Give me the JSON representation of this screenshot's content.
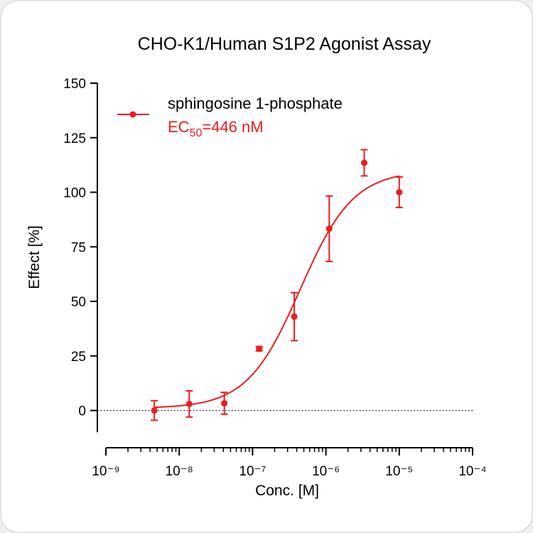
{
  "chart_data": {
    "type": "dose-response",
    "title": "CHO-K1/Human S1P2 Agonist Assay",
    "x_label": "Conc. [M]",
    "y_label": "Effect  [%]",
    "x_scale": "log",
    "xlim": [
      1e-09,
      0.0001
    ],
    "xticks": [
      {
        "value": 1e-09,
        "label": "10⁻⁹"
      },
      {
        "value": 1e-08,
        "label": "10⁻⁸"
      },
      {
        "value": 1e-07,
        "label": "10⁻⁷"
      },
      {
        "value": 1e-06,
        "label": "10⁻⁶"
      },
      {
        "value": 1e-05,
        "label": "10⁻⁵"
      },
      {
        "value": 0.0001,
        "label": "10⁻⁴"
      }
    ],
    "ylim": [
      -10,
      150
    ],
    "yticks": [
      0,
      25,
      50,
      75,
      100,
      125,
      150
    ],
    "zero_line": true,
    "series": [
      {
        "name": "sphingosine 1-phosphate",
        "color": "#ee1c1c",
        "x": [
          4.57e-09,
          1.37e-08,
          4.12e-08,
          1.23e-07,
          3.7e-07,
          1.11e-06,
          3.33e-06,
          1e-05
        ],
        "values": [
          0,
          3,
          3.3,
          28.3,
          43,
          83.3,
          113.5,
          100
        ],
        "errors": [
          4.5,
          6,
          5,
          1,
          11,
          15,
          6,
          7
        ],
        "fit": {
          "bottom": 1,
          "top": 110,
          "ec50": 4.46e-07,
          "hill": 1.2
        }
      }
    ],
    "annotation": {
      "prefix": "EC",
      "subscript": "50",
      "suffix": "=446 nM"
    }
  }
}
